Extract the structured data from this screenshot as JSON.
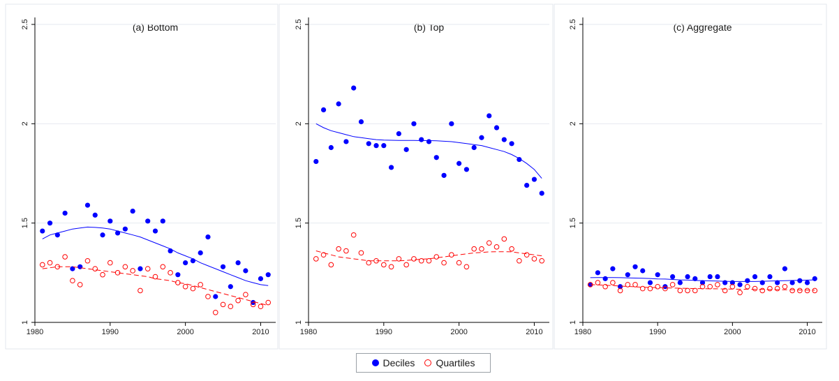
{
  "legend": {
    "placement": "bottom-center",
    "deciles_label": "Deciles",
    "quartiles_label": "Quartiles"
  },
  "colors": {
    "deciles": "#0000ff",
    "quartiles": "#ff0000",
    "grid": "#e6e9ef"
  },
  "chart_data": [
    {
      "type": "scatter",
      "title": "(a) Bottom",
      "xlim": [
        1980,
        2012
      ],
      "ylim": [
        1,
        2.5
      ],
      "xticks": [
        1980,
        1990,
        2000,
        2010
      ],
      "yticks": [
        1,
        1.5,
        2,
        2.5
      ],
      "ytick_labels": [
        "1",
        "1.5",
        "2",
        "2.5"
      ],
      "grid": true,
      "x": [
        1981,
        1982,
        1983,
        1984,
        1985,
        1986,
        1987,
        1988,
        1989,
        1990,
        1991,
        1992,
        1993,
        1994,
        1995,
        1996,
        1997,
        1998,
        1999,
        2000,
        2001,
        2002,
        2003,
        2004,
        2005,
        2006,
        2007,
        2008,
        2009,
        2010,
        2011
      ],
      "series": [
        {
          "name": "Deciles",
          "marker": "filled-circle",
          "values": [
            1.46,
            1.5,
            1.44,
            1.55,
            1.27,
            1.28,
            1.59,
            1.54,
            1.44,
            1.51,
            1.45,
            1.47,
            1.56,
            1.27,
            1.51,
            1.46,
            1.51,
            1.36,
            1.24,
            1.3,
            1.31,
            1.35,
            1.43,
            1.13,
            1.28,
            1.18,
            1.3,
            1.26,
            1.1,
            1.22,
            1.24
          ],
          "fit": [
            1.42,
            1.44,
            1.45,
            1.46,
            1.47,
            1.475,
            1.48,
            1.478,
            1.475,
            1.47,
            1.46,
            1.45,
            1.44,
            1.43,
            1.415,
            1.4,
            1.385,
            1.37,
            1.35,
            1.335,
            1.32,
            1.3,
            1.285,
            1.27,
            1.255,
            1.24,
            1.225,
            1.21,
            1.2,
            1.19,
            1.185
          ],
          "fit_style": "solid"
        },
        {
          "name": "Quartiles",
          "marker": "hollow-circle",
          "values": [
            1.29,
            1.3,
            1.28,
            1.33,
            1.21,
            1.19,
            1.31,
            1.27,
            1.24,
            1.3,
            1.25,
            1.28,
            1.26,
            1.16,
            1.27,
            1.23,
            1.28,
            1.25,
            1.2,
            1.18,
            1.17,
            1.19,
            1.13,
            1.05,
            1.09,
            1.08,
            1.11,
            1.14,
            1.09,
            1.08,
            1.1
          ],
          "fit": [
            1.27,
            1.275,
            1.28,
            1.28,
            1.28,
            1.275,
            1.27,
            1.265,
            1.26,
            1.255,
            1.25,
            1.245,
            1.24,
            1.235,
            1.23,
            1.22,
            1.215,
            1.21,
            1.2,
            1.195,
            1.185,
            1.175,
            1.165,
            1.155,
            1.145,
            1.135,
            1.125,
            1.115,
            1.105,
            1.095,
            1.085
          ],
          "fit_style": "dashed"
        }
      ]
    },
    {
      "type": "scatter",
      "title": "(b) Top",
      "xlim": [
        1980,
        2012
      ],
      "ylim": [
        1,
        2.5
      ],
      "xticks": [
        1980,
        1990,
        2000,
        2010
      ],
      "yticks": [
        1,
        1.5,
        2,
        2.5
      ],
      "ytick_labels": [
        "1",
        "1.5",
        "2",
        "2.5"
      ],
      "grid": true,
      "x": [
        1981,
        1982,
        1983,
        1984,
        1985,
        1986,
        1987,
        1988,
        1989,
        1990,
        1991,
        1992,
        1993,
        1994,
        1995,
        1996,
        1997,
        1998,
        1999,
        2000,
        2001,
        2002,
        2003,
        2004,
        2005,
        2006,
        2007,
        2008,
        2009,
        2010,
        2011
      ],
      "series": [
        {
          "name": "Deciles",
          "marker": "filled-circle",
          "values": [
            1.81,
            2.07,
            1.88,
            2.1,
            1.91,
            2.18,
            2.01,
            1.9,
            1.89,
            1.89,
            1.78,
            1.95,
            1.87,
            2.0,
            1.92,
            1.91,
            1.83,
            1.74,
            2.0,
            1.8,
            1.77,
            1.88,
            1.93,
            2.04,
            1.98,
            1.92,
            1.9,
            1.82,
            1.69,
            1.72,
            1.65
          ],
          "fit": [
            2.0,
            1.98,
            1.965,
            1.955,
            1.945,
            1.935,
            1.93,
            1.925,
            1.92,
            1.918,
            1.917,
            1.916,
            1.916,
            1.916,
            1.915,
            1.915,
            1.914,
            1.912,
            1.91,
            1.905,
            1.9,
            1.895,
            1.89,
            1.88,
            1.87,
            1.86,
            1.845,
            1.825,
            1.8,
            1.77,
            1.725
          ],
          "fit_style": "solid"
        },
        {
          "name": "Quartiles",
          "marker": "hollow-circle",
          "values": [
            1.32,
            1.34,
            1.29,
            1.37,
            1.36,
            1.44,
            1.35,
            1.3,
            1.31,
            1.29,
            1.28,
            1.32,
            1.29,
            1.32,
            1.31,
            1.31,
            1.33,
            1.3,
            1.34,
            1.3,
            1.28,
            1.37,
            1.37,
            1.4,
            1.38,
            1.42,
            1.37,
            1.31,
            1.34,
            1.32,
            1.31
          ],
          "fit": [
            1.36,
            1.35,
            1.34,
            1.33,
            1.325,
            1.32,
            1.315,
            1.31,
            1.31,
            1.31,
            1.31,
            1.31,
            1.312,
            1.315,
            1.318,
            1.32,
            1.325,
            1.33,
            1.335,
            1.34,
            1.345,
            1.35,
            1.352,
            1.355,
            1.356,
            1.356,
            1.355,
            1.35,
            1.345,
            1.34,
            1.335
          ],
          "fit_style": "dashed"
        }
      ]
    },
    {
      "type": "scatter",
      "title": "(c) Aggregate",
      "xlim": [
        1980,
        2012
      ],
      "ylim": [
        1,
        2.5
      ],
      "xticks": [
        1980,
        1990,
        2000,
        2010
      ],
      "yticks": [
        1,
        1.5,
        2,
        2.5
      ],
      "ytick_labels": [
        "1",
        "1.5",
        "2",
        "2.5"
      ],
      "grid": true,
      "x": [
        1981,
        1982,
        1983,
        1984,
        1985,
        1986,
        1987,
        1988,
        1989,
        1990,
        1991,
        1992,
        1993,
        1994,
        1995,
        1996,
        1997,
        1998,
        1999,
        2000,
        2001,
        2002,
        2003,
        2004,
        2005,
        2006,
        2007,
        2008,
        2009,
        2010,
        2011
      ],
      "series": [
        {
          "name": "Deciles",
          "marker": "filled-circle",
          "values": [
            1.19,
            1.25,
            1.22,
            1.27,
            1.18,
            1.24,
            1.28,
            1.26,
            1.2,
            1.24,
            1.18,
            1.23,
            1.2,
            1.23,
            1.22,
            1.2,
            1.23,
            1.23,
            1.2,
            1.2,
            1.19,
            1.21,
            1.23,
            1.2,
            1.23,
            1.2,
            1.27,
            1.2,
            1.21,
            1.2,
            1.22
          ],
          "fit": [
            1.225,
            1.226,
            1.226,
            1.226,
            1.225,
            1.224,
            1.223,
            1.222,
            1.221,
            1.219,
            1.218,
            1.216,
            1.214,
            1.213,
            1.211,
            1.21,
            1.209,
            1.208,
            1.207,
            1.206,
            1.206,
            1.206,
            1.206,
            1.207,
            1.208,
            1.209,
            1.21,
            1.211,
            1.212,
            1.213,
            1.214
          ],
          "fit_style": "solid"
        },
        {
          "name": "Quartiles",
          "marker": "hollow-circle",
          "values": [
            1.19,
            1.2,
            1.18,
            1.2,
            1.16,
            1.19,
            1.19,
            1.17,
            1.17,
            1.18,
            1.17,
            1.19,
            1.16,
            1.16,
            1.16,
            1.18,
            1.18,
            1.19,
            1.16,
            1.18,
            1.15,
            1.18,
            1.17,
            1.16,
            1.17,
            1.17,
            1.18,
            1.16,
            1.16,
            1.16,
            1.16
          ],
          "fit": [
            1.19,
            1.189,
            1.187,
            1.185,
            1.183,
            1.181,
            1.179,
            1.177,
            1.176,
            1.175,
            1.174,
            1.173,
            1.172,
            1.171,
            1.17,
            1.17,
            1.169,
            1.169,
            1.168,
            1.168,
            1.167,
            1.167,
            1.166,
            1.166,
            1.165,
            1.165,
            1.164,
            1.164,
            1.163,
            1.163,
            1.162
          ],
          "fit_style": "dashed"
        }
      ]
    }
  ]
}
